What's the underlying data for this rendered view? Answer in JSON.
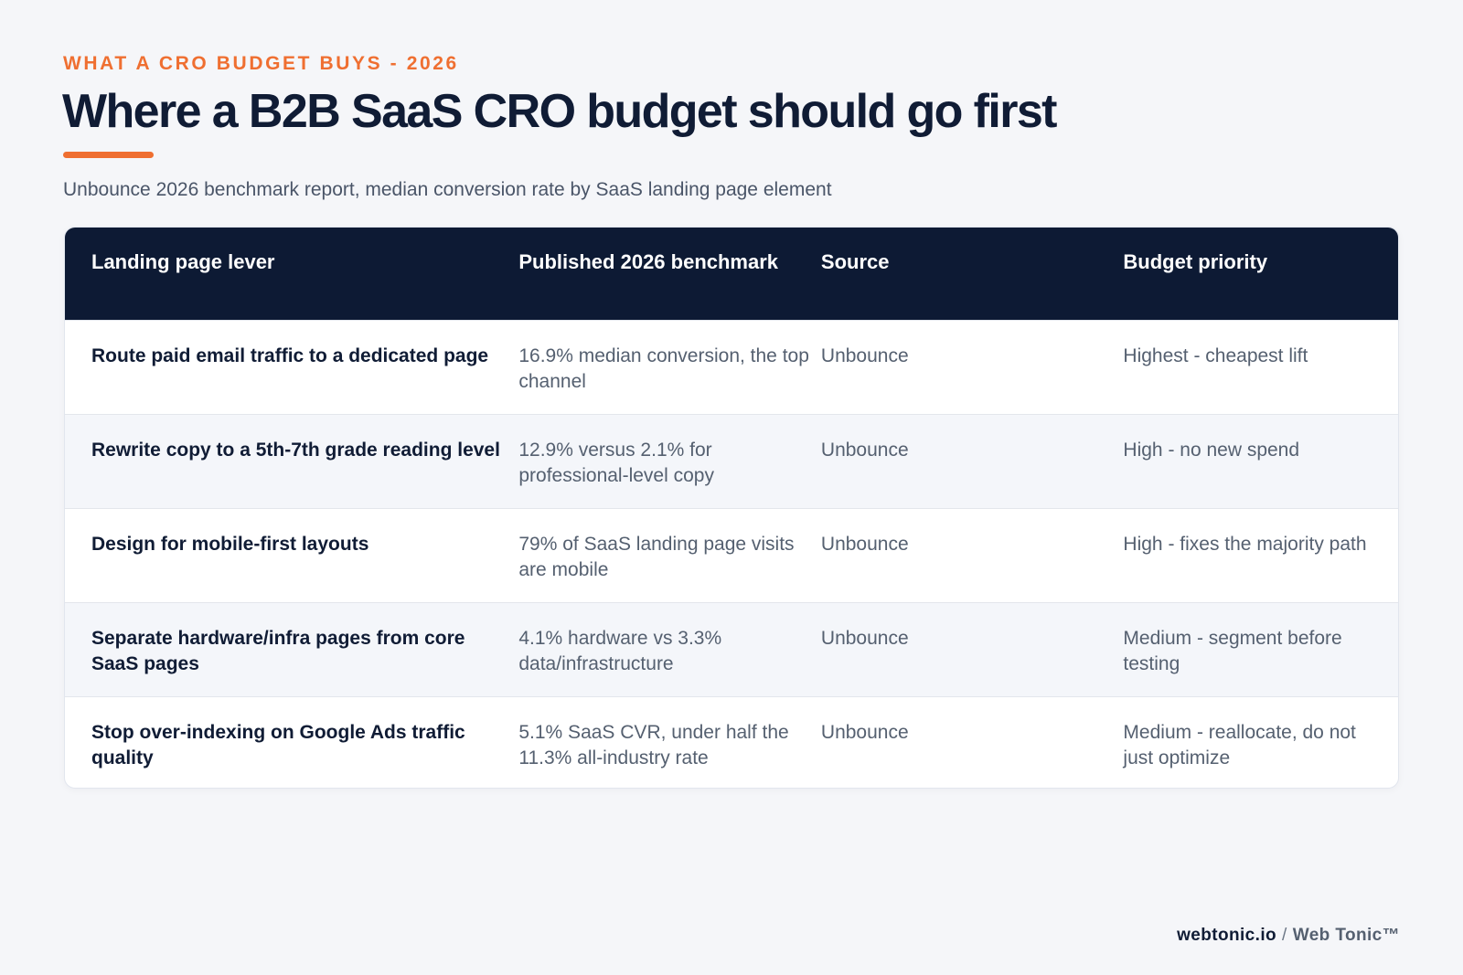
{
  "header": {
    "eyebrow": "WHAT A CRO BUDGET BUYS - 2026",
    "title": "Where a B2B SaaS CRO budget should go first",
    "subtitle": "Unbounce 2026 benchmark report, median conversion rate by SaaS landing page element"
  },
  "table": {
    "columns": [
      "Landing page lever",
      "Published 2026 benchmark",
      "Source",
      "Budget priority"
    ],
    "rows": [
      {
        "lever": "Route paid email traffic to a dedicated page",
        "benchmark": "16.9% median conversion, the top channel",
        "source": "Unbounce",
        "priority": "Highest - cheapest lift"
      },
      {
        "lever": "Rewrite copy to a 5th-7th grade reading level",
        "benchmark": "12.9% versus 2.1% for professional-level copy",
        "source": "Unbounce",
        "priority": "High - no new spend"
      },
      {
        "lever": "Design for mobile-first layouts",
        "benchmark": "79% of SaaS landing page visits are mobile",
        "source": "Unbounce",
        "priority": "High - fixes the majority path"
      },
      {
        "lever": "Separate hardware/infra pages from core SaaS pages",
        "benchmark": "4.1% hardware vs 3.3% data/infrastructure",
        "source": "Unbounce",
        "priority": "Medium - segment before testing"
      },
      {
        "lever": "Stop over-indexing on Google Ads traffic quality",
        "benchmark": "5.1% SaaS CVR, under half the 11.3% all-industry rate",
        "source": "Unbounce",
        "priority": "Medium - reallocate, do not just optimize"
      }
    ]
  },
  "footer": {
    "site": "webtonic.io",
    "separator": "/",
    "brand": "Web Tonic™"
  },
  "colors": {
    "accent": "#ef6f31",
    "header_bg": "#0d1a34",
    "page_bg": "#f5f6f9"
  }
}
